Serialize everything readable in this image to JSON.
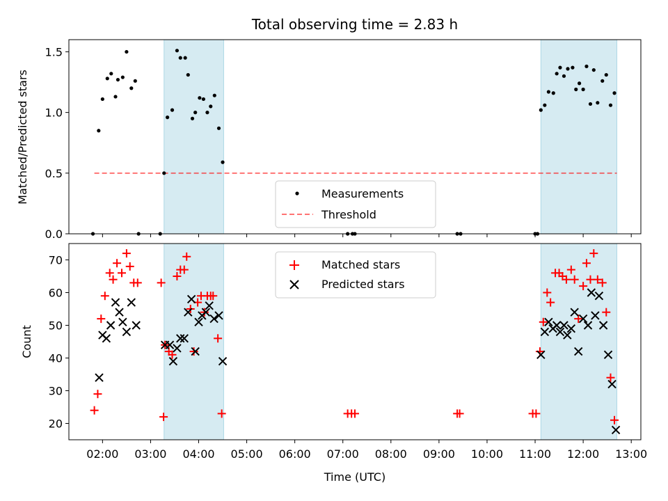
{
  "title": "Total observing time = 2.83 h",
  "chart_data": [
    {
      "type": "scatter",
      "ylabel": "Matched/Predicted stars",
      "ylim": [
        0,
        1.6
      ],
      "yticks": [
        0.0,
        0.5,
        1.0,
        1.5
      ],
      "ytick_labels": [
        "0.0",
        "0.5",
        "1.0",
        "1.5"
      ],
      "threshold": 0.5,
      "shaded_intervals_hours": [
        [
          3.28,
          4.52
        ],
        [
          11.12,
          12.7
        ]
      ],
      "legend_position": "lower center",
      "legend": [
        "Measurements",
        "Threshold"
      ],
      "series": [
        {
          "name": "Measurements",
          "points": [
            [
              1.8,
              0.0
            ],
            [
              1.92,
              0.85
            ],
            [
              2.0,
              1.11
            ],
            [
              2.1,
              1.28
            ],
            [
              2.18,
              1.32
            ],
            [
              2.27,
              1.13
            ],
            [
              2.32,
              1.27
            ],
            [
              2.42,
              1.29
            ],
            [
              2.5,
              1.5
            ],
            [
              2.6,
              1.2
            ],
            [
              2.68,
              1.26
            ],
            [
              2.75,
              0.0
            ],
            [
              3.2,
              0.0
            ],
            [
              3.28,
              0.5
            ],
            [
              3.35,
              0.96
            ],
            [
              3.45,
              1.02
            ],
            [
              3.55,
              1.51
            ],
            [
              3.62,
              1.45
            ],
            [
              3.72,
              1.45
            ],
            [
              3.78,
              1.31
            ],
            [
              3.87,
              0.95
            ],
            [
              3.93,
              1.0
            ],
            [
              4.02,
              1.12
            ],
            [
              4.1,
              1.11
            ],
            [
              4.18,
              1.0
            ],
            [
              4.25,
              1.05
            ],
            [
              4.33,
              1.14
            ],
            [
              4.42,
              0.87
            ],
            [
              4.5,
              0.59
            ],
            [
              7.1,
              0.0
            ],
            [
              7.2,
              0.0
            ],
            [
              7.25,
              0.0
            ],
            [
              9.38,
              0.0
            ],
            [
              9.45,
              0.0
            ],
            [
              11.0,
              0.0
            ],
            [
              11.05,
              0.0
            ],
            [
              11.12,
              1.02
            ],
            [
              11.2,
              1.06
            ],
            [
              11.28,
              1.17
            ],
            [
              11.38,
              1.16
            ],
            [
              11.45,
              1.32
            ],
            [
              11.52,
              1.37
            ],
            [
              11.6,
              1.3
            ],
            [
              11.68,
              1.36
            ],
            [
              11.78,
              1.37
            ],
            [
              11.85,
              1.19
            ],
            [
              11.92,
              1.24
            ],
            [
              12.0,
              1.19
            ],
            [
              12.07,
              1.38
            ],
            [
              12.15,
              1.07
            ],
            [
              12.22,
              1.35
            ],
            [
              12.3,
              1.08
            ],
            [
              12.4,
              1.26
            ],
            [
              12.48,
              1.31
            ],
            [
              12.57,
              1.06
            ],
            [
              12.65,
              1.16
            ]
          ]
        },
        {
          "name": "Threshold",
          "x_range_hours": [
            1.83,
            12.7
          ],
          "y": 0.5
        }
      ]
    },
    {
      "type": "scatter",
      "xlabel": "Time (UTC)",
      "ylabel": "Count",
      "xlim_hours": [
        1.3,
        13.2
      ],
      "ylim": [
        15,
        75
      ],
      "yticks": [
        20,
        30,
        40,
        50,
        60,
        70
      ],
      "ytick_labels": [
        "20",
        "30",
        "40",
        "50",
        "60",
        "70"
      ],
      "xticks_hours": [
        2,
        3,
        4,
        5,
        6,
        7,
        8,
        9,
        10,
        11,
        12,
        13
      ],
      "xtick_labels": [
        "02:00",
        "03:00",
        "04:00",
        "05:00",
        "06:00",
        "07:00",
        "08:00",
        "09:00",
        "10:00",
        "11:00",
        "12:00",
        "13:00"
      ],
      "shaded_intervals_hours": [
        [
          3.28,
          4.52
        ],
        [
          11.12,
          12.7
        ]
      ],
      "legend_position": "upper center",
      "legend": [
        "Matched stars",
        "Predicted stars"
      ],
      "series": [
        {
          "name": "Matched stars",
          "points": [
            [
              1.83,
              24
            ],
            [
              1.9,
              29
            ],
            [
              1.97,
              52
            ],
            [
              2.05,
              59
            ],
            [
              2.15,
              66
            ],
            [
              2.22,
              64
            ],
            [
              2.3,
              69
            ],
            [
              2.4,
              66
            ],
            [
              2.5,
              72
            ],
            [
              2.57,
              68
            ],
            [
              2.65,
              63
            ],
            [
              2.73,
              63
            ],
            [
              3.22,
              63
            ],
            [
              3.27,
              22
            ],
            [
              3.3,
              44
            ],
            [
              3.38,
              42
            ],
            [
              3.45,
              41
            ],
            [
              3.55,
              65
            ],
            [
              3.62,
              67
            ],
            [
              3.7,
              67
            ],
            [
              3.75,
              71
            ],
            [
              3.83,
              55
            ],
            [
              3.9,
              42
            ],
            [
              3.98,
              57
            ],
            [
              4.05,
              59
            ],
            [
              4.12,
              54
            ],
            [
              4.18,
              59
            ],
            [
              4.25,
              59
            ],
            [
              4.3,
              59
            ],
            [
              4.4,
              46
            ],
            [
              4.48,
              23
            ],
            [
              7.1,
              23
            ],
            [
              7.18,
              23
            ],
            [
              7.25,
              23
            ],
            [
              9.38,
              23
            ],
            [
              9.43,
              23
            ],
            [
              10.95,
              23
            ],
            [
              11.02,
              23
            ],
            [
              11.1,
              42
            ],
            [
              11.17,
              51
            ],
            [
              11.25,
              60
            ],
            [
              11.32,
              57
            ],
            [
              11.42,
              66
            ],
            [
              11.5,
              66
            ],
            [
              11.57,
              65
            ],
            [
              11.65,
              64
            ],
            [
              11.75,
              67
            ],
            [
              11.82,
              64
            ],
            [
              11.9,
              52
            ],
            [
              12.0,
              62
            ],
            [
              12.07,
              69
            ],
            [
              12.15,
              64
            ],
            [
              12.22,
              72
            ],
            [
              12.3,
              64
            ],
            [
              12.4,
              63
            ],
            [
              12.48,
              54
            ],
            [
              12.57,
              34
            ],
            [
              12.65,
              21
            ]
          ]
        },
        {
          "name": "Predicted stars",
          "points": [
            [
              1.93,
              34
            ],
            [
              2.0,
              47
            ],
            [
              2.08,
              46
            ],
            [
              2.17,
              50
            ],
            [
              2.27,
              57
            ],
            [
              2.35,
              54
            ],
            [
              2.42,
              51
            ],
            [
              2.5,
              48
            ],
            [
              2.6,
              57
            ],
            [
              2.7,
              50
            ],
            [
              3.3,
              44
            ],
            [
              3.4,
              44
            ],
            [
              3.47,
              39
            ],
            [
              3.55,
              43
            ],
            [
              3.62,
              46
            ],
            [
              3.7,
              46
            ],
            [
              3.78,
              54
            ],
            [
              3.85,
              58
            ],
            [
              3.93,
              42
            ],
            [
              4.0,
              51
            ],
            [
              4.07,
              53
            ],
            [
              4.15,
              54
            ],
            [
              4.22,
              56
            ],
            [
              4.32,
              52
            ],
            [
              4.42,
              53
            ],
            [
              4.5,
              39
            ],
            [
              11.12,
              41
            ],
            [
              11.2,
              48
            ],
            [
              11.28,
              51
            ],
            [
              11.37,
              49
            ],
            [
              11.45,
              50
            ],
            [
              11.52,
              48
            ],
            [
              11.6,
              50
            ],
            [
              11.67,
              47
            ],
            [
              11.75,
              49
            ],
            [
              11.82,
              54
            ],
            [
              11.9,
              42
            ],
            [
              12.0,
              52
            ],
            [
              12.1,
              50
            ],
            [
              12.17,
              60
            ],
            [
              12.25,
              53
            ],
            [
              12.33,
              59
            ],
            [
              12.42,
              50
            ],
            [
              12.52,
              41
            ],
            [
              12.6,
              32
            ],
            [
              12.68,
              18
            ]
          ]
        }
      ]
    }
  ]
}
